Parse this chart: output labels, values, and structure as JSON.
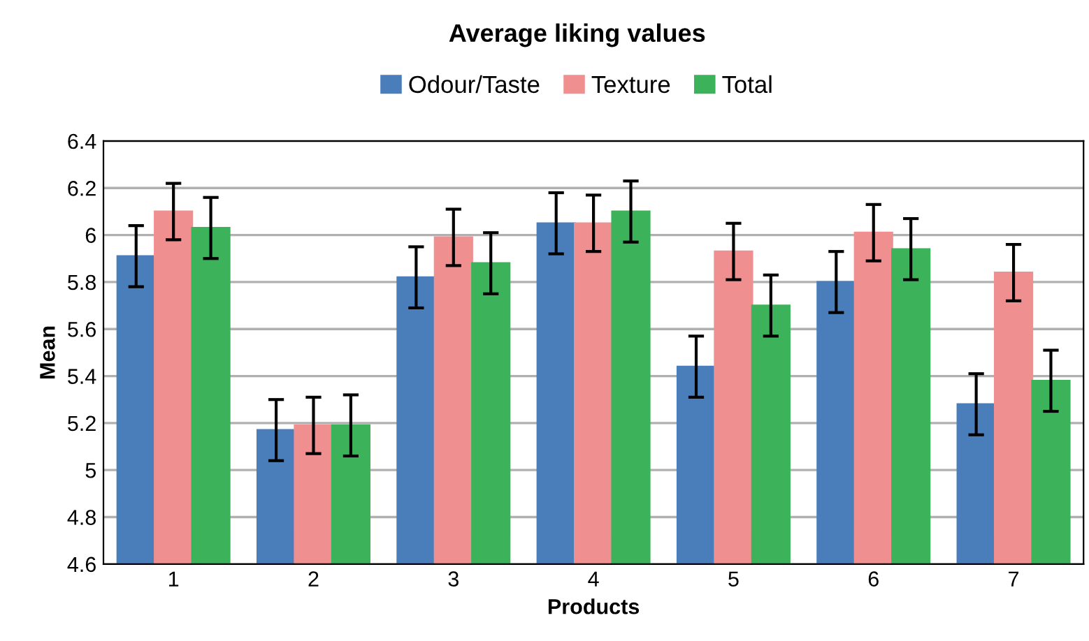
{
  "chart_data": {
    "type": "bar",
    "title": "Average liking values",
    "xlabel": "Products",
    "ylabel": "Mean",
    "categories": [
      "1",
      "2",
      "3",
      "4",
      "5",
      "6",
      "7"
    ],
    "series": [
      {
        "name": "Odour/Taste",
        "color": "#4a7ebb",
        "values": [
          5.91,
          5.17,
          5.82,
          6.05,
          5.44,
          5.8,
          5.28
        ],
        "errors": [
          0.13,
          0.13,
          0.13,
          0.13,
          0.13,
          0.13,
          0.13
        ]
      },
      {
        "name": "Texture",
        "color": "#f08f8f",
        "values": [
          6.1,
          5.19,
          5.99,
          6.05,
          5.93,
          6.01,
          5.84
        ],
        "errors": [
          0.12,
          0.12,
          0.12,
          0.12,
          0.12,
          0.12,
          0.12
        ]
      },
      {
        "name": "Total",
        "color": "#3cb35a",
        "values": [
          6.03,
          5.19,
          5.88,
          6.1,
          5.7,
          5.94,
          5.38
        ],
        "errors": [
          0.13,
          0.13,
          0.13,
          0.13,
          0.13,
          0.13,
          0.13
        ]
      }
    ],
    "ylim": [
      4.6,
      6.4
    ],
    "yticks": [
      4.6,
      4.8,
      5,
      5.2,
      5.4,
      5.6,
      5.8,
      6,
      6.2,
      6.4
    ],
    "grid": "y",
    "legend": "top"
  }
}
